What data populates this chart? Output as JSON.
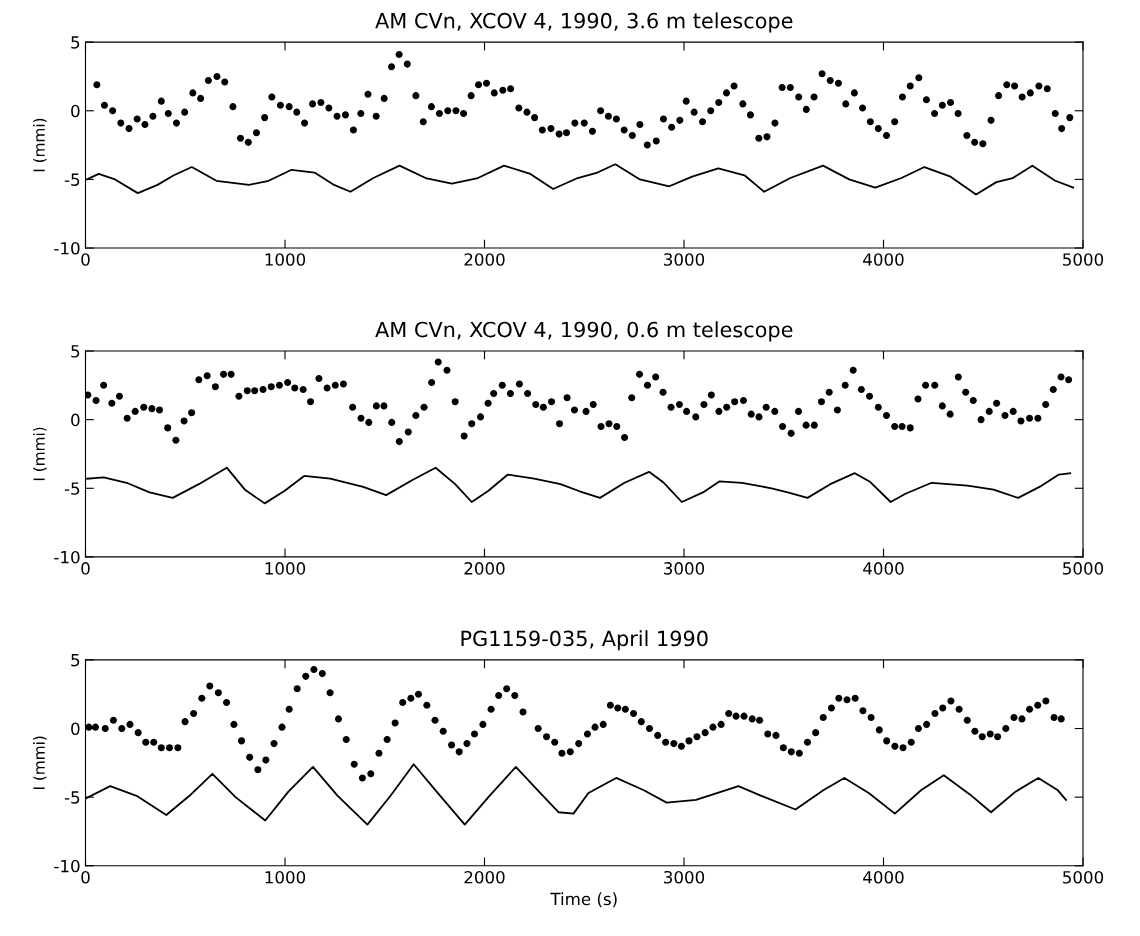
{
  "chart_data": [
    {
      "type": "scatter",
      "title": "AM CVn, XCOV 4, 1990, 3.6 m telescope",
      "ylabel": "I (mmi)",
      "xlim": [
        0,
        5000
      ],
      "xticks": [
        0,
        1000,
        2000,
        3000,
        4000,
        5000
      ],
      "ylim": [
        -10,
        5
      ],
      "yticks": [
        -10,
        -5,
        0,
        5
      ],
      "grid": false,
      "series": [
        {
          "color": "#000000",
          "marker": "circle",
          "x": [
            57,
            95,
            136,
            177,
            218,
            259,
            298,
            338,
            380,
            415,
            456,
            497,
            538,
            577,
            616,
            659,
            698,
            739,
            777,
            816,
            857,
            898,
            934,
            977,
            1021,
            1059,
            1098,
            1138,
            1180,
            1220,
            1261,
            1303,
            1343,
            1380,
            1416,
            1457,
            1497,
            1534,
            1572,
            1613,
            1656,
            1693,
            1734,
            1774,
            1816,
            1857,
            1895,
            1933,
            1970,
            2010,
            2049,
            2092,
            2131,
            2172,
            2213,
            2251,
            2290,
            2333,
            2374,
            2411,
            2453,
            2500,
            2541,
            2582,
            2621,
            2661,
            2700,
            2741,
            2779,
            2816,
            2861,
            2897,
            2938,
            2979,
            3011,
            3051,
            3093,
            3134,
            3174,
            3213,
            3251,
            3295,
            3333,
            3375,
            3416,
            3456,
            3492,
            3533,
            3575,
            3613,
            3652,
            3692,
            3733,
            3774,
            3811,
            3854,
            3895,
            3934,
            3974,
            4015,
            4056,
            4095,
            4134,
            4177,
            4215,
            4256,
            4295,
            4336,
            4374,
            4418,
            4457,
            4498,
            4539,
            4577,
            4618,
            4657,
            4695,
            4736,
            4779,
            4821,
            4861,
            4893,
            4934
          ],
          "values": [
            1.9,
            0.4,
            0.0,
            -0.9,
            -1.3,
            -0.6,
            -1.0,
            -0.4,
            0.7,
            -0.2,
            -0.9,
            -0.1,
            1.3,
            0.9,
            2.2,
            2.5,
            2.1,
            0.3,
            -2.0,
            -2.3,
            -1.6,
            -0.5,
            1.0,
            0.4,
            0.3,
            -0.1,
            -0.9,
            0.5,
            0.6,
            0.2,
            -0.4,
            -0.3,
            -1.4,
            -0.2,
            1.2,
            -0.4,
            0.9,
            3.2,
            4.1,
            3.4,
            1.1,
            -0.8,
            0.3,
            -0.2,
            0.0,
            0.0,
            -0.2,
            1.1,
            1.9,
            2.0,
            1.3,
            1.5,
            1.6,
            0.2,
            -0.1,
            -0.5,
            -1.4,
            -1.3,
            -1.7,
            -1.6,
            -0.9,
            -0.9,
            -1.5,
            0.0,
            -0.4,
            -0.6,
            -1.4,
            -1.8,
            -1.0,
            -2.5,
            -2.2,
            -0.6,
            -1.2,
            -0.7,
            0.7,
            -0.1,
            -0.8,
            0.0,
            0.6,
            1.3,
            1.8,
            0.5,
            -0.3,
            -2.0,
            -1.9,
            -0.9,
            1.7,
            1.7,
            1.0,
            0.1,
            1.0,
            2.7,
            2.2,
            2.0,
            0.5,
            1.3,
            0.2,
            -0.8,
            -1.3,
            -1.8,
            -0.8,
            1.0,
            1.8,
            2.4,
            0.8,
            -0.2,
            0.4,
            0.6,
            -0.2,
            -1.8,
            -2.3,
            -2.4,
            -0.7,
            1.1,
            1.9,
            1.8,
            1.0,
            1.3,
            1.8,
            1.6,
            -0.2,
            -1.3,
            -0.5
          ]
        },
        {
          "type": "line",
          "color": "#000000",
          "marker": "none",
          "line_style": "solid",
          "x": [
            8,
            66,
            148,
            262,
            361,
            443,
            533,
            656,
            820,
            918,
            1033,
            1148,
            1246,
            1328,
            1443,
            1574,
            1705,
            1836,
            1967,
            2098,
            2230,
            2344,
            2467,
            2566,
            2656,
            2779,
            2926,
            3041,
            3172,
            3303,
            3402,
            3533,
            3697,
            3828,
            3959,
            4090,
            4205,
            4336,
            4464,
            4566,
            4648,
            4746,
            4861,
            4951
          ],
          "values": [
            -5.0,
            -4.6,
            -5.0,
            -6.0,
            -5.4,
            -4.7,
            -4.1,
            -5.1,
            -5.4,
            -5.1,
            -4.3,
            -4.5,
            -5.4,
            -5.9,
            -4.9,
            -4.0,
            -4.9,
            -5.3,
            -4.9,
            -4.0,
            -4.6,
            -5.7,
            -4.9,
            -4.5,
            -3.9,
            -5.0,
            -5.5,
            -4.8,
            -4.2,
            -4.7,
            -5.9,
            -4.9,
            -4.0,
            -5.0,
            -5.6,
            -4.9,
            -4.1,
            -4.8,
            -6.1,
            -5.2,
            -4.9,
            -4.0,
            -5.1,
            -5.6
          ]
        }
      ]
    },
    {
      "type": "scatter",
      "title": "AM CVn, XCOV 4, 1990, 0.6 m telescope",
      "ylabel": "I (mmi)",
      "xlim": [
        0,
        5000
      ],
      "xticks": [
        0,
        1000,
        2000,
        3000,
        4000,
        5000
      ],
      "ylim": [
        -10,
        5
      ],
      "yticks": [
        -10,
        -5,
        0,
        5
      ],
      "grid": false,
      "series": [
        {
          "color": "#000000",
          "marker": "circle",
          "x": [
            12,
            53,
            91,
            132,
            170,
            209,
            249,
            292,
            333,
            371,
            412,
            453,
            494,
            532,
            568,
            610,
            651,
            692,
            730,
            769,
            811,
            848,
            890,
            931,
            972,
            1013,
            1049,
            1091,
            1128,
            1170,
            1211,
            1252,
            1293,
            1339,
            1381,
            1420,
            1458,
            1496,
            1535,
            1573,
            1618,
            1656,
            1697,
            1735,
            1768,
            1812,
            1853,
            1898,
            1936,
            1980,
            2018,
            2046,
            2089,
            2130,
            2175,
            2216,
            2257,
            2295,
            2336,
            2376,
            2414,
            2451,
            2509,
            2545,
            2584,
            2624,
            2663,
            2702,
            2738,
            2777,
            2817,
            2858,
            2895,
            2935,
            2977,
            3013,
            3059,
            3100,
            3137,
            3175,
            3214,
            3254,
            3298,
            3337,
            3376,
            3412,
            3455,
            3494,
            3537,
            3574,
            3612,
            3653,
            3689,
            3728,
            3769,
            3808,
            3848,
            3889,
            3930,
            3974,
            4015,
            4056,
            4093,
            4134,
            4173,
            4211,
            4257,
            4295,
            4334,
            4375,
            4412,
            4450,
            4489,
            4530,
            4567,
            4609,
            4650,
            4689,
            4732,
            4774,
            4813,
            4851,
            4890,
            4928
          ],
          "values": [
            1.8,
            1.4,
            2.5,
            1.2,
            1.7,
            0.1,
            0.6,
            0.9,
            0.8,
            0.7,
            -0.6,
            -1.5,
            -0.1,
            0.5,
            2.9,
            3.2,
            2.4,
            3.3,
            3.3,
            1.7,
            2.1,
            2.1,
            2.2,
            2.4,
            2.5,
            2.7,
            2.3,
            2.2,
            1.3,
            3.0,
            2.3,
            2.5,
            2.6,
            0.9,
            0.1,
            -0.2,
            1.0,
            1.0,
            -0.2,
            -1.6,
            -0.9,
            0.3,
            0.9,
            2.7,
            4.2,
            3.6,
            1.3,
            -1.2,
            -0.3,
            0.2,
            1.2,
            1.9,
            2.5,
            1.9,
            2.6,
            1.9,
            1.1,
            0.9,
            1.3,
            -0.3,
            1.6,
            0.7,
            0.6,
            1.1,
            -0.5,
            -0.3,
            -0.5,
            -1.3,
            1.6,
            3.3,
            2.5,
            3.1,
            2.0,
            0.9,
            1.1,
            0.6,
            0.2,
            1.1,
            1.8,
            0.6,
            0.9,
            1.3,
            1.4,
            0.4,
            0.2,
            0.9,
            0.6,
            -0.5,
            -1.0,
            0.6,
            -0.4,
            -0.4,
            1.3,
            2.0,
            0.7,
            2.5,
            3.6,
            2.2,
            1.7,
            0.9,
            0.3,
            -0.5,
            -0.5,
            -0.6,
            1.5,
            2.5,
            2.5,
            1.0,
            0.4,
            3.1,
            2.0,
            1.4,
            0.0,
            0.6,
            1.2,
            0.3,
            0.6,
            -0.1,
            0.1,
            0.1,
            1.1,
            2.2,
            3.1,
            2.9
          ]
        },
        {
          "type": "line",
          "color": "#000000",
          "marker": "none",
          "line_style": "solid",
          "x": [
            8,
            91,
            206,
            321,
            437,
            568,
            708,
            799,
            898,
            997,
            1096,
            1227,
            1392,
            1507,
            1639,
            1755,
            1853,
            1936,
            2018,
            2117,
            2249,
            2381,
            2473,
            2579,
            2702,
            2825,
            2899,
            2989,
            3095,
            3177,
            3291,
            3439,
            3520,
            3619,
            3733,
            3856,
            3930,
            4036,
            4110,
            4241,
            4421,
            4552,
            4675,
            4782,
            4879,
            4936
          ],
          "values": [
            -4.3,
            -4.2,
            -4.6,
            -5.3,
            -5.7,
            -4.7,
            -3.5,
            -5.1,
            -6.1,
            -5.2,
            -4.1,
            -4.3,
            -4.9,
            -5.5,
            -4.4,
            -3.5,
            -4.7,
            -6.0,
            -5.2,
            -4.0,
            -4.3,
            -4.7,
            -5.2,
            -5.7,
            -4.6,
            -3.8,
            -4.6,
            -6.0,
            -5.3,
            -4.5,
            -4.6,
            -5.0,
            -5.3,
            -5.7,
            -4.7,
            -3.9,
            -4.5,
            -6.0,
            -5.4,
            -4.6,
            -4.8,
            -5.1,
            -5.7,
            -4.9,
            -4.0,
            -3.9
          ]
        }
      ]
    },
    {
      "type": "scatter",
      "title": "PG1159-035, April 1990",
      "xlabel": "Time (s)",
      "ylabel": "I (mmi)",
      "xlim": [
        0,
        5000
      ],
      "xticks": [
        0,
        1000,
        2000,
        3000,
        4000,
        5000
      ],
      "ylim": [
        -10,
        5
      ],
      "yticks": [
        -10,
        -5,
        0,
        5
      ],
      "grid": false,
      "series": [
        {
          "color": "#000000",
          "marker": "circle",
          "x": [
            17,
            50,
            99,
            140,
            182,
            223,
            264,
            302,
            342,
            380,
            421,
            463,
            499,
            542,
            583,
            623,
            666,
            707,
            744,
            782,
            823,
            864,
            904,
            945,
            985,
            1021,
            1061,
            1104,
            1145,
            1187,
            1226,
            1268,
            1307,
            1347,
            1388,
            1430,
            1471,
            1512,
            1552,
            1590,
            1631,
            1669,
            1711,
            1752,
            1793,
            1835,
            1873,
            1912,
            1950,
            1992,
            2033,
            2071,
            2111,
            2152,
            2193,
            2269,
            2311,
            2352,
            2388,
            2430,
            2472,
            2516,
            2554,
            2595,
            2631,
            2668,
            2706,
            2747,
            2786,
            2827,
            2868,
            2908,
            2949,
            2987,
            3025,
            3065,
            3106,
            3145,
            3186,
            3224,
            3261,
            3301,
            3342,
            3379,
            3420,
            3461,
            3498,
            3538,
            3578,
            3619,
            3660,
            3698,
            3739,
            3776,
            3817,
            3858,
            3897,
            3938,
            3979,
            4016,
            4057,
            4098,
            4139,
            4175,
            4216,
            4258,
            4297,
            4338,
            4379,
            4420,
            4458,
            4495,
            4535,
            4572,
            4613,
            4654,
            4694,
            4732,
            4773,
            4814,
            4855,
            4891
          ],
          "values": [
            0.1,
            0.1,
            0.0,
            0.6,
            0.0,
            0.3,
            -0.3,
            -1.0,
            -1.0,
            -1.4,
            -1.4,
            -1.4,
            0.5,
            1.1,
            2.2,
            3.1,
            2.6,
            1.9,
            0.3,
            -0.9,
            -2.1,
            -3.0,
            -2.3,
            -1.1,
            0.1,
            1.4,
            2.9,
            3.8,
            4.3,
            4.0,
            2.6,
            0.7,
            -0.8,
            -2.6,
            -3.6,
            -3.3,
            -1.8,
            -0.8,
            0.4,
            1.9,
            2.2,
            2.5,
            1.7,
            0.6,
            -0.2,
            -1.2,
            -1.7,
            -1.1,
            -0.4,
            0.3,
            1.4,
            2.4,
            2.9,
            2.4,
            1.2,
            0.0,
            -0.6,
            -1.0,
            -1.8,
            -1.7,
            -1.1,
            -0.4,
            0.1,
            0.3,
            1.7,
            1.5,
            1.4,
            1.1,
            0.5,
            0.0,
            -0.5,
            -1.0,
            -1.1,
            -1.3,
            -0.9,
            -0.6,
            -0.3,
            0.1,
            0.3,
            1.1,
            0.9,
            0.9,
            0.7,
            0.6,
            -0.4,
            -0.5,
            -1.4,
            -1.7,
            -1.8,
            -1.0,
            -0.3,
            0.8,
            1.5,
            2.2,
            2.1,
            2.2,
            1.3,
            0.8,
            -0.1,
            -0.9,
            -1.3,
            -1.4,
            -1.0,
            0.0,
            0.3,
            1.1,
            1.5,
            2.0,
            1.4,
            0.6,
            -0.2,
            -0.6,
            -0.4,
            -0.6,
            0.0,
            0.8,
            0.7,
            1.4,
            1.7,
            2.0,
            0.8,
            0.7
          ]
        },
        {
          "type": "line",
          "color": "#000000",
          "marker": "none",
          "line_style": "solid",
          "x": [
            0,
            124,
            256,
            405,
            521,
            636,
            752,
            901,
            1017,
            1140,
            1264,
            1413,
            1529,
            1645,
            1760,
            1901,
            2025,
            2157,
            2273,
            2372,
            2446,
            2521,
            2660,
            2799,
            2913,
            3060,
            3273,
            3404,
            3559,
            3698,
            3804,
            3926,
            4057,
            4188,
            4302,
            4433,
            4539,
            4662,
            4776,
            4874,
            4915
          ],
          "values": [
            -5.1,
            -4.2,
            -4.9,
            -6.3,
            -4.9,
            -3.3,
            -5.0,
            -6.7,
            -4.6,
            -2.8,
            -4.9,
            -7.0,
            -4.9,
            -2.6,
            -4.6,
            -7.0,
            -4.9,
            -2.8,
            -4.6,
            -6.1,
            -6.2,
            -4.7,
            -3.6,
            -4.5,
            -5.4,
            -5.2,
            -4.2,
            -5.0,
            -5.9,
            -4.5,
            -3.6,
            -4.7,
            -6.2,
            -4.5,
            -3.4,
            -4.8,
            -6.1,
            -4.6,
            -3.6,
            -4.5,
            -5.2
          ]
        }
      ]
    }
  ]
}
